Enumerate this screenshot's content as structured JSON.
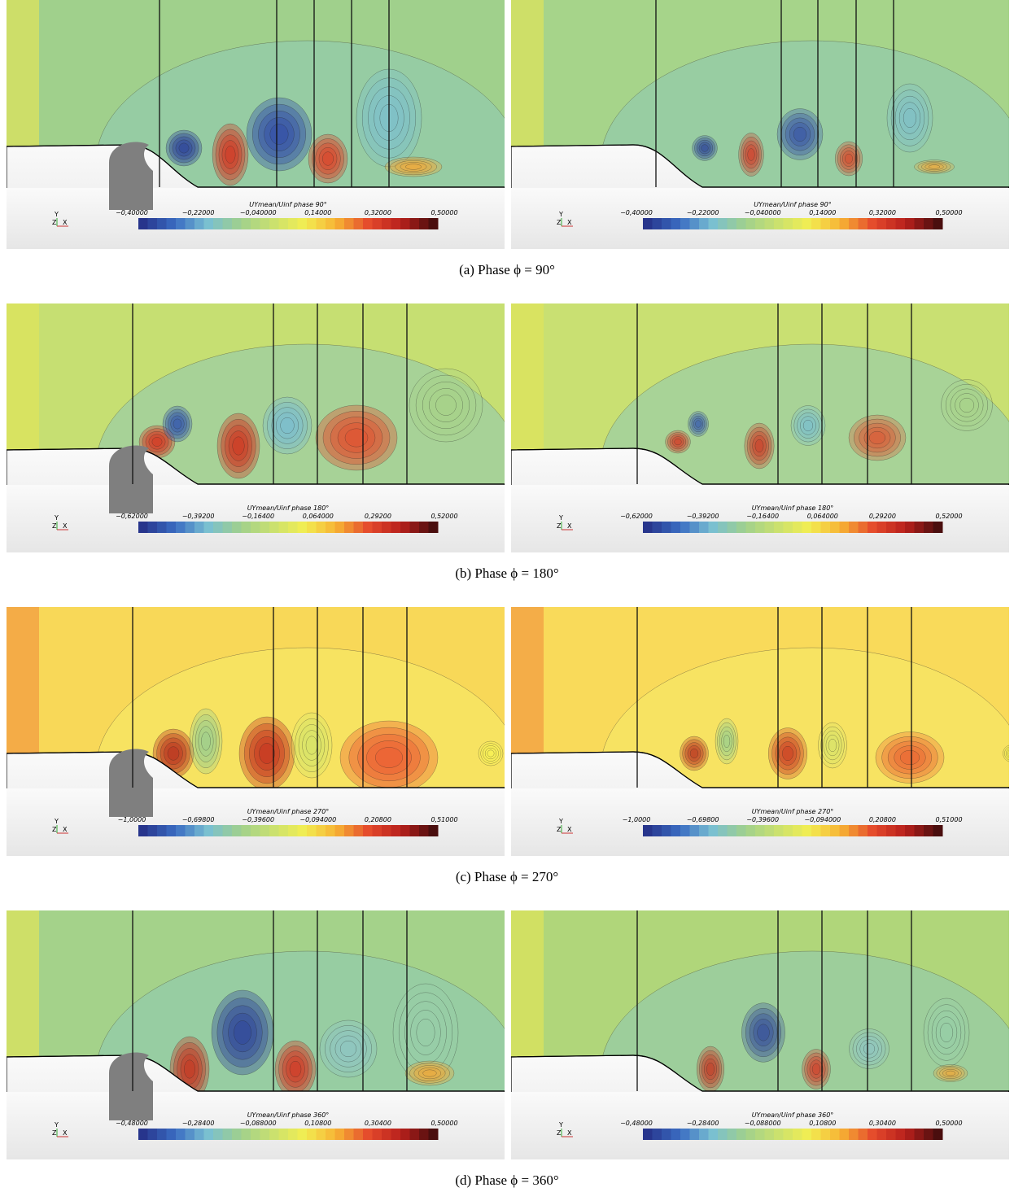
{
  "figures": [
    {
      "caption": "(a) Phase ϕ = 90°",
      "colorbar": {
        "title": "UYmean/Uinf phase 90°",
        "ticks": [
          "−0,40000",
          "−0,22000",
          "−0,040000",
          "0,14000",
          "0,32000",
          "0,50000"
        ]
      }
    },
    {
      "caption": "(b) Phase ϕ = 180°",
      "colorbar": {
        "title": "UYmean/Uinf phase 180°",
        "ticks": [
          "−0,62000",
          "−0,39200",
          "−0,16400",
          "0,064000",
          "0,29200",
          "0,52000"
        ]
      }
    },
    {
      "caption": "(c) Phase ϕ = 270°",
      "colorbar": {
        "title": "UYmean/Uinf phase 270°",
        "ticks": [
          "−1,0000",
          "−0,69800",
          "−0,39600",
          "−0,094000",
          "0,20800",
          "0,51000"
        ]
      }
    },
    {
      "caption": "(d) Phase ϕ = 360°",
      "colorbar": {
        "title": "UYmean/Uinf phase 360°",
        "ticks": [
          "−0,48000",
          "−0,28400",
          "−0,088000",
          "0,10800",
          "0,30400",
          "0,50000"
        ]
      }
    }
  ],
  "axes_triad": {
    "y": "Y",
    "z": "Z",
    "x": "X"
  }
}
